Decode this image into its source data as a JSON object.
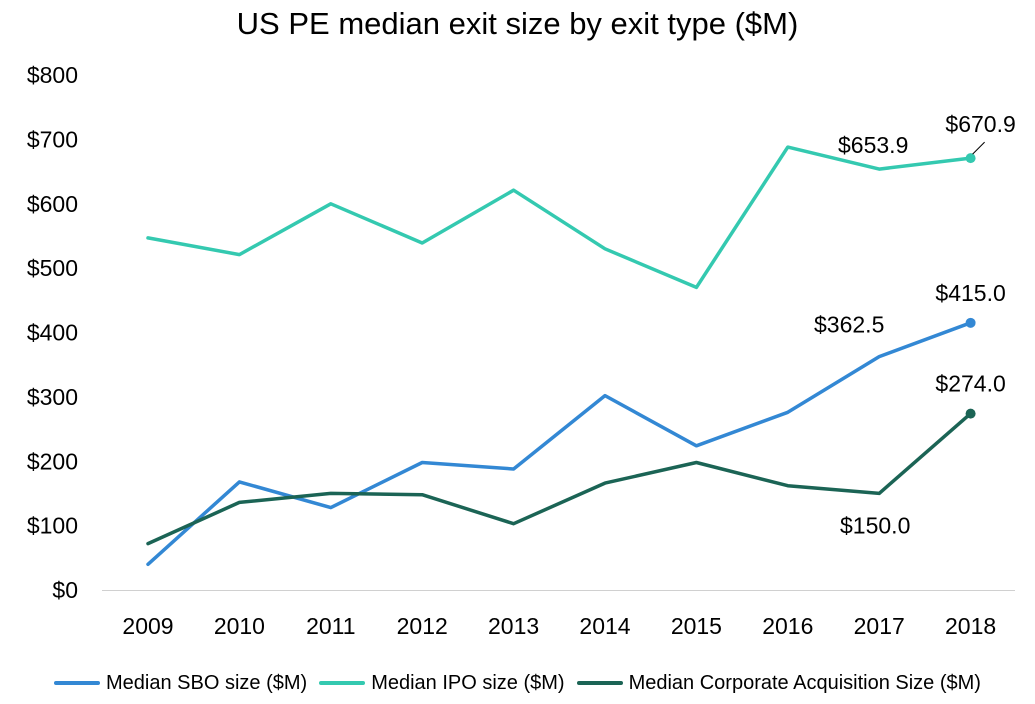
{
  "chart_data": {
    "type": "line",
    "title": "US PE median exit size by exit type ($M)",
    "x": [
      "2009",
      "2010",
      "2011",
      "2012",
      "2013",
      "2014",
      "2015",
      "2016",
      "2017",
      "2018"
    ],
    "y_ticks": [
      "$0",
      "$100",
      "$200",
      "$300",
      "$400",
      "$500",
      "$600",
      "$700",
      "$800"
    ],
    "ylim": [
      0,
      800
    ],
    "grid": false,
    "legend_position": "bottom",
    "series": [
      {
        "name": "Median SBO size ($M)",
        "color": "#3388d4",
        "values": [
          40,
          168,
          128,
          198,
          188,
          302,
          224,
          276,
          362.5,
          415.0
        ],
        "labels": [
          {
            "index": 8,
            "text": "$362.5"
          },
          {
            "index": 9,
            "text": "$415.0"
          }
        ]
      },
      {
        "name": "Median IPO size ($M)",
        "color": "#34c9b0",
        "values": [
          547,
          521,
          600,
          539,
          621,
          530,
          470,
          688,
          653.9,
          670.9
        ],
        "labels": [
          {
            "index": 8,
            "text": "$653.9"
          },
          {
            "index": 9,
            "text": "$670.9"
          }
        ]
      },
      {
        "name": "Median Corporate Acquisition Size ($M)",
        "color": "#1b6455",
        "values": [
          72,
          136,
          150,
          148,
          103,
          166,
          198,
          162,
          150.0,
          274.0
        ],
        "labels": [
          {
            "index": 8,
            "text": "$150.0"
          },
          {
            "index": 9,
            "text": "$274.0"
          }
        ]
      }
    ]
  }
}
